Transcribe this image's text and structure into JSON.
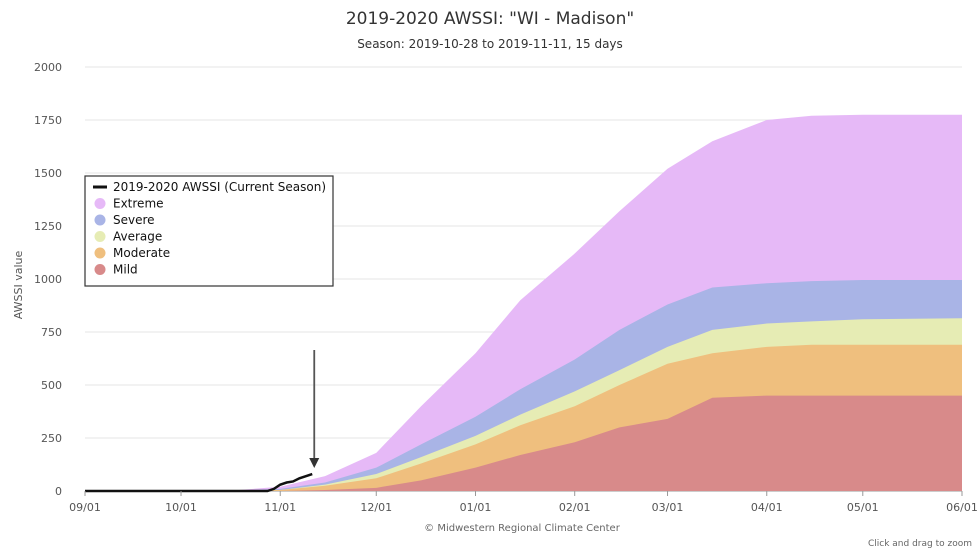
{
  "chart_data": {
    "type": "area",
    "title": "2019-2020 AWSSI: \"WI - Madison\"",
    "subtitle": "Season: 2019-10-28 to 2019-11-11, 15 days",
    "ylabel": "AWSSI value",
    "xlabel": "",
    "ylim": [
      0,
      2000
    ],
    "yticks": [
      0,
      250,
      500,
      750,
      1000,
      1250,
      1500,
      1750,
      2000
    ],
    "xlim": [
      "2019-09-01",
      "2020-06-01"
    ],
    "xticks": [
      "09/01",
      "10/01",
      "11/01",
      "12/01",
      "01/01",
      "02/01",
      "03/01",
      "04/01",
      "05/01",
      "06/01"
    ],
    "grid": true,
    "legend_position": "left-upper",
    "x": [
      "2019-09-01",
      "2019-10-15",
      "2019-11-01",
      "2019-11-15",
      "2019-12-01",
      "2019-12-15",
      "2020-01-01",
      "2020-01-15",
      "2020-02-01",
      "2020-02-15",
      "2020-03-01",
      "2020-03-15",
      "2020-04-01",
      "2020-04-15",
      "2020-05-01",
      "2020-06-01"
    ],
    "series": [
      {
        "name": "Mild",
        "color": "#d88a8a",
        "values": [
          0,
          0,
          0,
          5,
          15,
          50,
          110,
          170,
          230,
          300,
          340,
          440,
          450,
          450,
          450,
          450
        ]
      },
      {
        "name": "Moderate",
        "color": "#efbf7e",
        "values": [
          0,
          0,
          5,
          25,
          60,
          130,
          220,
          310,
          400,
          500,
          600,
          650,
          680,
          690,
          690,
          690
        ]
      },
      {
        "name": "Average",
        "color": "#e6ecb4",
        "values": [
          0,
          0,
          5,
          30,
          80,
          160,
          260,
          360,
          470,
          570,
          680,
          760,
          790,
          800,
          810,
          815
        ]
      },
      {
        "name": "Severe",
        "color": "#a9b4e6",
        "values": [
          0,
          0,
          10,
          40,
          110,
          220,
          350,
          480,
          620,
          760,
          880,
          960,
          980,
          990,
          995,
          995
        ]
      },
      {
        "name": "Extreme",
        "color": "#e6b9f7",
        "values": [
          0,
          0,
          20,
          70,
          180,
          400,
          650,
          900,
          1120,
          1320,
          1520,
          1650,
          1750,
          1770,
          1775,
          1775
        ]
      }
    ],
    "current_season": {
      "name": "2019-2020 AWSSI (Current Season)",
      "color": "#111111",
      "x": [
        "2019-09-01",
        "2019-10-28",
        "2019-10-30",
        "2019-11-01",
        "2019-11-03",
        "2019-11-05",
        "2019-11-07",
        "2019-11-09",
        "2019-11-11"
      ],
      "values": [
        0,
        0,
        10,
        30,
        40,
        45,
        60,
        70,
        80
      ]
    },
    "annotation": {
      "type": "arrow",
      "points_to": "2019-11-11"
    },
    "legend_order": [
      "2019-2020 AWSSI (Current Season)",
      "Extreme",
      "Severe",
      "Average",
      "Moderate",
      "Mild"
    ]
  },
  "credit": "© Midwestern Regional Climate Center",
  "zoom_hint": "Click and drag to zoom"
}
